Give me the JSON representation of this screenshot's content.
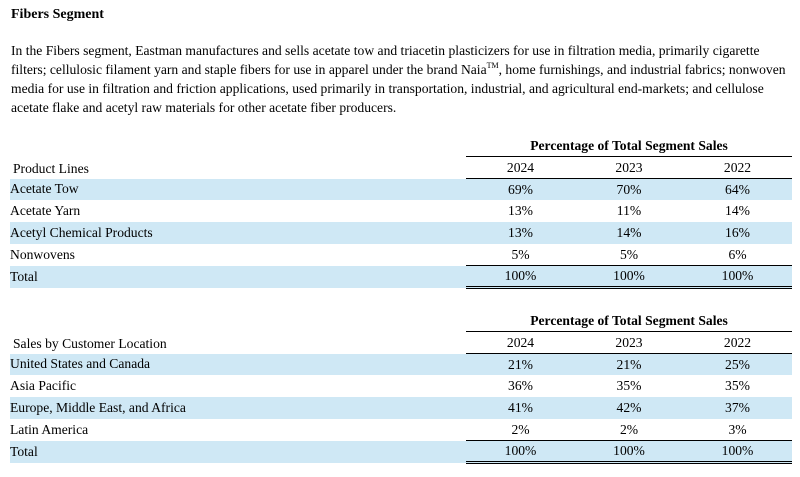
{
  "section_title": "Fibers Segment",
  "paragraph": {
    "before_tm": "In the Fibers segment, Eastman manufactures and sells acetate tow and triacetin plasticizers for use in filtration media, primarily cigarette filters; cellulosic filament yarn and staple fibers for use in apparel under the brand Naia",
    "tm": "TM",
    "after_tm": ", home furnishings, and industrial fabrics; nonwoven media for use in filtration and friction applications, used primarily in transportation, industrial, and agricultural end-markets; and cellulose acetate flake and acetyl raw materials for other acetate fiber producers."
  },
  "product_table": {
    "super_header": "Percentage of Total Segment Sales",
    "row_header": "Product Lines",
    "years": [
      "2024",
      "2023",
      "2022"
    ],
    "rows": [
      {
        "name": "Acetate Tow",
        "values": [
          "69%",
          "70%",
          "64%"
        ]
      },
      {
        "name": "Acetate Yarn",
        "values": [
          "13%",
          "11%",
          "14%"
        ]
      },
      {
        "name": "Acetyl Chemical Products",
        "values": [
          "13%",
          "14%",
          "16%"
        ]
      },
      {
        "name": "Nonwovens",
        "values": [
          "5%",
          "5%",
          "6%"
        ]
      },
      {
        "name": "Total",
        "values": [
          "100%",
          "100%",
          "100%"
        ]
      }
    ]
  },
  "location_table": {
    "super_header": "Percentage of Total Segment Sales",
    "row_header": "Sales by Customer Location",
    "years": [
      "2024",
      "2023",
      "2022"
    ],
    "rows": [
      {
        "name": "United States and Canada",
        "values": [
          "21%",
          "21%",
          "25%"
        ]
      },
      {
        "name": "Asia Pacific",
        "values": [
          "36%",
          "35%",
          "35%"
        ]
      },
      {
        "name": "Europe, Middle East, and Africa",
        "values": [
          "41%",
          "42%",
          "37%"
        ]
      },
      {
        "name": "Latin America",
        "values": [
          "2%",
          "2%",
          "3%"
        ]
      },
      {
        "name": "Total",
        "values": [
          "100%",
          "100%",
          "100%"
        ]
      }
    ]
  }
}
